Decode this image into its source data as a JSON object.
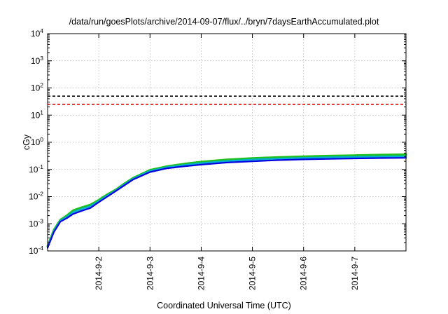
{
  "chart_data": {
    "type": "line",
    "title": "/data/run/goesPlots/archive/2014-09-07/flux/../bryn/7daysEarthAccumulated.plot",
    "xlabel": "Coordinated Universal Time (UTC)",
    "ylabel": "cGy",
    "y_scale": "log",
    "ylim": [
      0.0001,
      10000
    ],
    "xlim": [
      "2014-09-01 00:00",
      "2014-09-08 00:00"
    ],
    "grid": true,
    "x_ticks": [
      {
        "value": "2014-09-02 00:00",
        "label": "2014-9-2"
      },
      {
        "value": "2014-09-03 00:00",
        "label": "2014-9-3"
      },
      {
        "value": "2014-09-04 00:00",
        "label": "2014-9-4"
      },
      {
        "value": "2014-09-05 00:00",
        "label": "2014-9-5"
      },
      {
        "value": "2014-09-06 00:00",
        "label": "2014-9-6"
      },
      {
        "value": "2014-09-07 00:00",
        "label": "2014-9-7"
      }
    ],
    "y_ticks": [
      {
        "value": 0.0001,
        "base": "10",
        "exp": "-4"
      },
      {
        "value": 0.001,
        "base": "10",
        "exp": "-3"
      },
      {
        "value": 0.01,
        "base": "10",
        "exp": "-2"
      },
      {
        "value": 0.1,
        "base": "10",
        "exp": "-1"
      },
      {
        "value": 1,
        "base": "10",
        "exp": "0"
      },
      {
        "value": 10,
        "base": "10",
        "exp": "1"
      },
      {
        "value": 100,
        "base": "10",
        "exp": "2"
      },
      {
        "value": 1000,
        "base": "10",
        "exp": "3"
      },
      {
        "value": 10000,
        "base": "10",
        "exp": "4"
      }
    ],
    "reference_lines": [
      {
        "y": 50,
        "color": "#000000",
        "style": "dashed"
      },
      {
        "y": 25,
        "color": "#e00000",
        "style": "dashed"
      }
    ],
    "series": [
      {
        "color": "#1fc01f",
        "x": [
          "2014-09-01 00:00",
          "2014-09-01 03:00",
          "2014-09-01 06:00",
          "2014-09-01 09:00",
          "2014-09-01 12:00",
          "2014-09-01 16:00",
          "2014-09-01 20:00",
          "2014-09-02 00:00",
          "2014-09-02 04:00",
          "2014-09-02 08:00",
          "2014-09-02 12:00",
          "2014-09-02 16:00",
          "2014-09-03 00:00",
          "2014-09-03 08:00",
          "2014-09-03 16:00",
          "2014-09-04 00:00",
          "2014-09-04 12:00",
          "2014-09-05 00:00",
          "2014-09-05 12:00",
          "2014-09-06 00:00",
          "2014-09-06 12:00",
          "2014-09-07 00:00",
          "2014-09-07 12:00",
          "2014-09-08 00:00"
        ],
        "values": [
          0.00015,
          0.0006,
          0.0014,
          0.002,
          0.0031,
          0.004,
          0.005,
          0.0075,
          0.012,
          0.018,
          0.03,
          0.048,
          0.095,
          0.13,
          0.16,
          0.19,
          0.23,
          0.26,
          0.28,
          0.3,
          0.315,
          0.33,
          0.345,
          0.355
        ]
      },
      {
        "color": "#00b0d0",
        "x": [
          "2014-09-01 00:00",
          "2014-09-01 03:00",
          "2014-09-01 06:00",
          "2014-09-01 09:00",
          "2014-09-01 12:00",
          "2014-09-01 16:00",
          "2014-09-01 20:00",
          "2014-09-02 00:00",
          "2014-09-02 04:00",
          "2014-09-02 08:00",
          "2014-09-02 12:00",
          "2014-09-02 16:00",
          "2014-09-03 00:00",
          "2014-09-03 08:00",
          "2014-09-03 16:00",
          "2014-09-04 00:00",
          "2014-09-04 12:00",
          "2014-09-05 00:00",
          "2014-09-05 12:00",
          "2014-09-06 00:00",
          "2014-09-06 12:00",
          "2014-09-07 00:00",
          "2014-09-07 12:00",
          "2014-09-08 00:00"
        ],
        "values": [
          0.00014,
          0.00055,
          0.0013,
          0.0018,
          0.0027,
          0.0035,
          0.0044,
          0.0068,
          0.011,
          0.017,
          0.028,
          0.045,
          0.088,
          0.12,
          0.145,
          0.17,
          0.205,
          0.23,
          0.25,
          0.265,
          0.28,
          0.29,
          0.3,
          0.305
        ]
      },
      {
        "color": "#0000e0",
        "x": [
          "2014-09-01 00:00",
          "2014-09-01 03:00",
          "2014-09-01 06:00",
          "2014-09-01 09:00",
          "2014-09-01 12:00",
          "2014-09-01 16:00",
          "2014-09-01 20:00",
          "2014-09-02 00:00",
          "2014-09-02 04:00",
          "2014-09-02 08:00",
          "2014-09-02 12:00",
          "2014-09-02 16:00",
          "2014-09-03 00:00",
          "2014-09-03 08:00",
          "2014-09-03 16:00",
          "2014-09-04 00:00",
          "2014-09-04 12:00",
          "2014-09-05 00:00",
          "2014-09-05 12:00",
          "2014-09-06 00:00",
          "2014-09-06 12:00",
          "2014-09-07 00:00",
          "2014-09-07 12:00",
          "2014-09-08 00:00"
        ],
        "values": [
          0.00013,
          0.0005,
          0.0012,
          0.0016,
          0.0023,
          0.003,
          0.0038,
          0.0062,
          0.01,
          0.016,
          0.026,
          0.042,
          0.08,
          0.11,
          0.13,
          0.15,
          0.18,
          0.2,
          0.22,
          0.235,
          0.245,
          0.255,
          0.262,
          0.268
        ]
      }
    ]
  }
}
